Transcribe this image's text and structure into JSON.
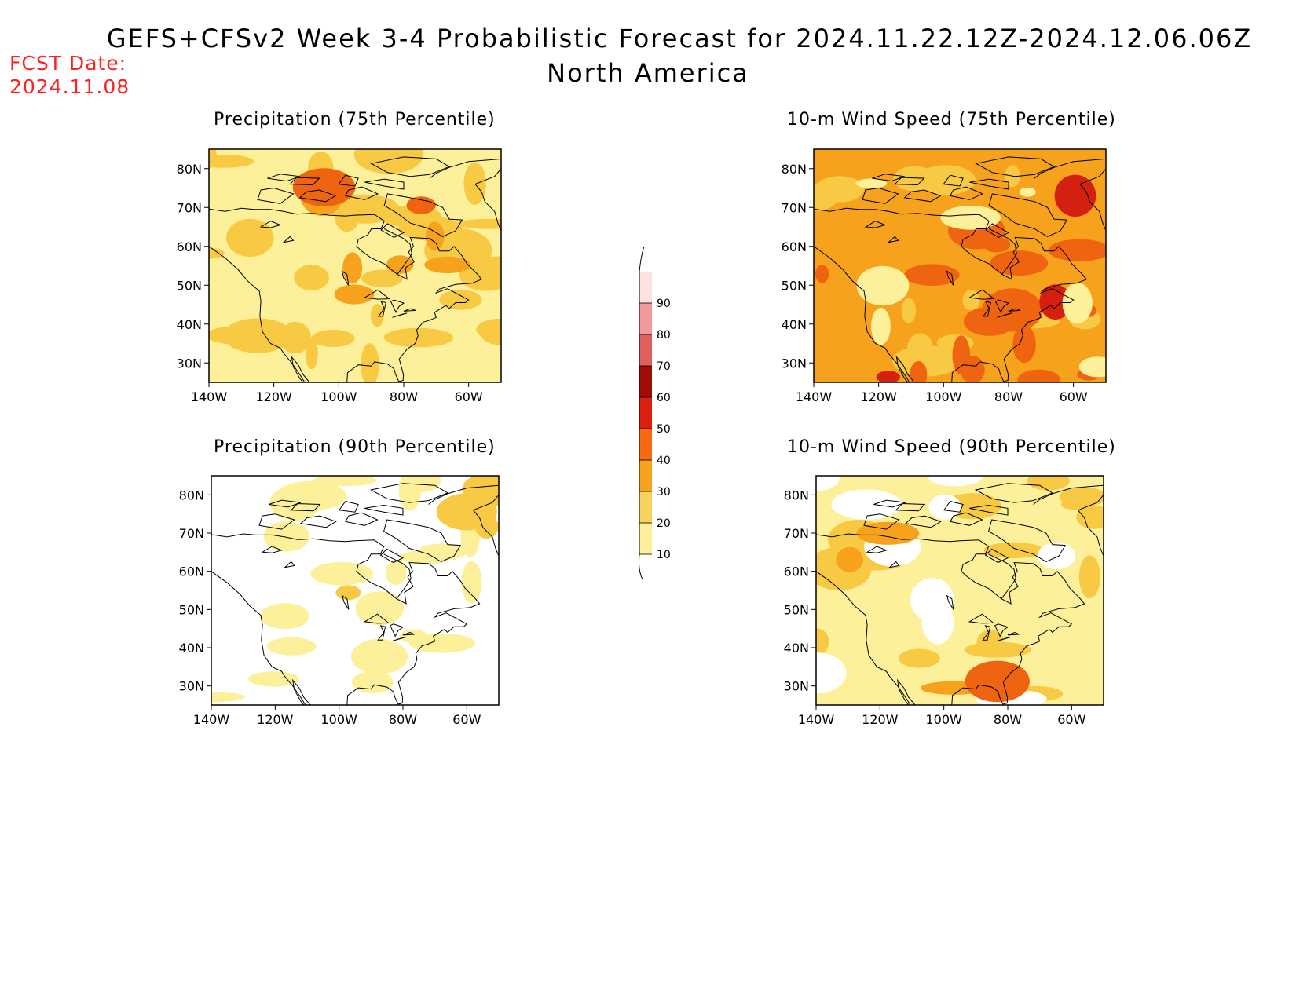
{
  "header": {
    "title": "GEFS+CFSv2 Week 3-4 Probabilistic Forecast for 2024.11.22.12Z-2024.12.06.06Z",
    "subtitle": "North America",
    "fcst_label": "FCST Date:",
    "fcst_date": "2024.11.08"
  },
  "panels": [
    {
      "id": "p75",
      "title": "Precipitation (75th Percentile)",
      "base": "#fdf09a",
      "patches": [
        [
          "#f8c943",
          0.55
        ],
        [
          "#f7a21c",
          0.1
        ],
        [
          "#ee6410",
          0.03
        ]
      ]
    },
    {
      "id": "w75",
      "title": "10-m Wind Speed (75th Percentile)",
      "base": "#f7a21c",
      "patches": [
        [
          "#f8c943",
          0.22
        ],
        [
          "#ee6410",
          0.25
        ],
        [
          "#d42010",
          0.05
        ],
        [
          "#fdf09a",
          0.12
        ]
      ]
    },
    {
      "id": "p90",
      "title": "Precipitation (90th Percentile)",
      "base": "#ffffff",
      "patches": [
        [
          "#fdf09a",
          0.35
        ],
        [
          "#f8c943",
          0.06
        ]
      ]
    },
    {
      "id": "w90",
      "title": "10-m Wind Speed (90th Percentile)",
      "base": "#fdf09a",
      "patches": [
        [
          "#f8c943",
          0.3
        ],
        [
          "#ffffff",
          0.18
        ],
        [
          "#f7a21c",
          0.05
        ],
        [
          "#ee6410",
          0.02
        ]
      ]
    }
  ],
  "axes": {
    "lat_labels": [
      "30N",
      "40N",
      "50N",
      "60N",
      "70N",
      "80N"
    ],
    "lon_labels": [
      "140W",
      "120W",
      "100W",
      "80W",
      "60W"
    ]
  },
  "colorbar": {
    "levels": [
      "10",
      "20",
      "30",
      "40",
      "50",
      "60",
      "70",
      "80",
      "90"
    ],
    "colors": [
      "#fdf09a",
      "#f8d25a",
      "#f7a21c",
      "#f76a10",
      "#dc2010",
      "#a00c08",
      "#e06060",
      "#f29a9a",
      "#fde0e0"
    ],
    "legend_placement": "center"
  }
}
